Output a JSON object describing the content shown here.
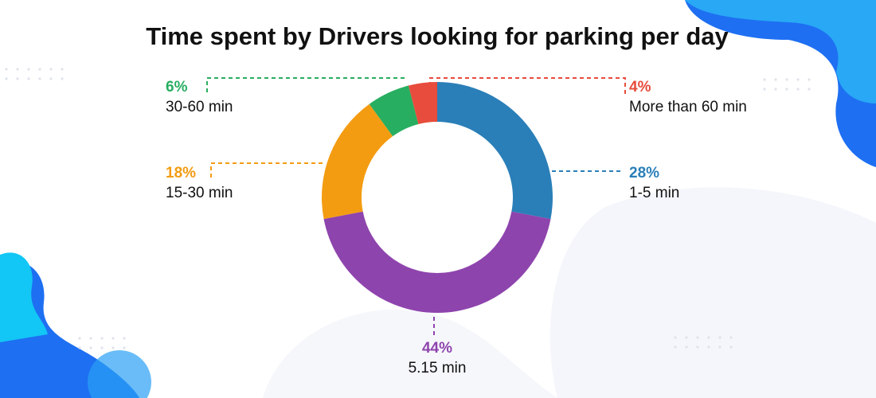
{
  "chart_data": {
    "type": "donut",
    "title": "Time spent by Drivers looking for parking per day",
    "categories": [
      "1-5 min",
      "5.15 min",
      "15-30 min",
      "30-60 min",
      "More than 60 min"
    ],
    "values": [
      28,
      44,
      18,
      6,
      4
    ],
    "value_labels": [
      "28%",
      "44%",
      "18%",
      "6%",
      "4%"
    ],
    "colors": [
      "#2a7fb8",
      "#8e44ad",
      "#f39c12",
      "#27ae60",
      "#e74c3c"
    ]
  }
}
